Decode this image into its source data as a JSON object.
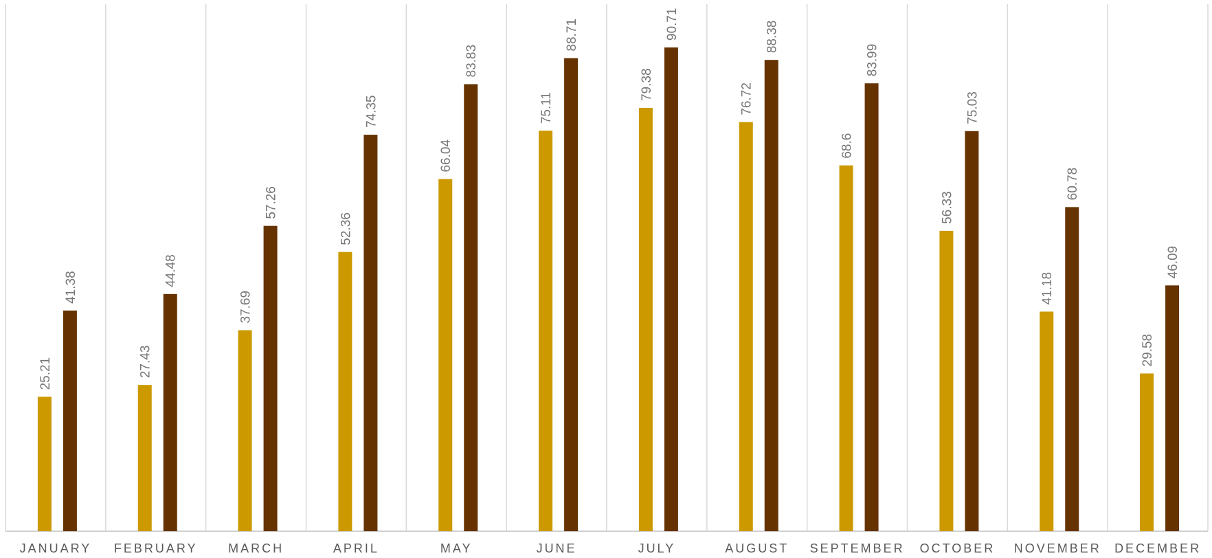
{
  "chart_data": {
    "type": "bar",
    "categories": [
      "JANUARY",
      "FEBRUARY",
      "MARCH",
      "APRIL",
      "MAY",
      "JUNE",
      "JULY",
      "AUGUST",
      "SEPTEMBER",
      "OCTOBER",
      "NOVEMBER",
      "DECEMBER"
    ],
    "series": [
      {
        "values": [
          25.21,
          27.43,
          37.69,
          52.36,
          66.04,
          75.11,
          79.38,
          76.72,
          68.6,
          56.33,
          41.18,
          29.58
        ],
        "labels": [
          "25.21",
          "27.43",
          "37.69",
          "52.36",
          "66.04",
          "75.11",
          "79.38",
          "76.72",
          "68.6",
          "56.33",
          "41.18",
          "29.58"
        ],
        "color": "#CC9900"
      },
      {
        "values": [
          41.38,
          44.48,
          57.26,
          74.35,
          83.83,
          88.71,
          90.71,
          88.38,
          83.99,
          75.03,
          60.78,
          46.09
        ],
        "labels": [
          "41.38",
          "44.48",
          "57.26",
          "74.35",
          "83.83",
          "88.71",
          "90.71",
          "88.38",
          "83.99",
          "75.03",
          "60.78",
          "46.09"
        ],
        "color": "#663300"
      }
    ],
    "title": "",
    "xlabel": "",
    "ylabel": "",
    "ylim": [
      0,
      100
    ],
    "grid": "vertical category separators",
    "legend": "none",
    "data_labels": "rotated above bars"
  }
}
